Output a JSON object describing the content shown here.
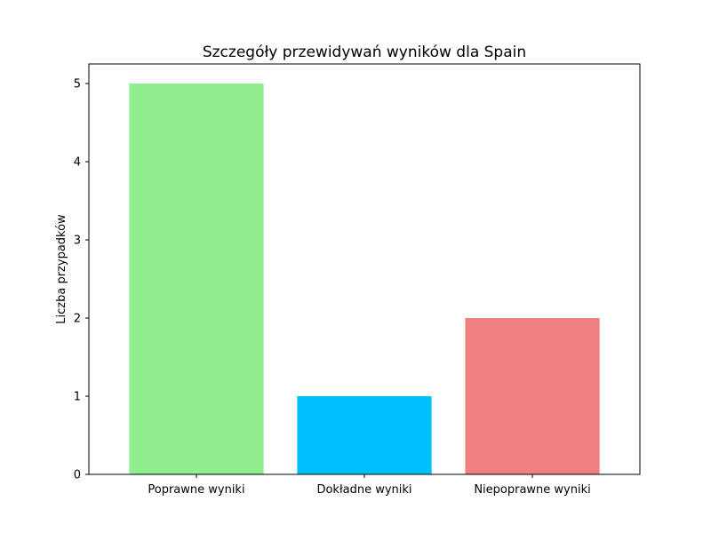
{
  "chart_data": {
    "type": "bar",
    "title": "Szczegóły przewidywań wyników dla Spain",
    "xlabel": "",
    "ylabel": "Liczba przypadków",
    "categories": [
      "Poprawne wyniki",
      "Dokładne wyniki",
      "Niepoprawne wyniki"
    ],
    "values": [
      5,
      1,
      2
    ],
    "colors": [
      "#90ee90",
      "#00bfff",
      "#f08080"
    ],
    "ylim": [
      0,
      5.25
    ],
    "yticks": [
      0,
      1,
      2,
      3,
      4,
      5
    ],
    "grid": false,
    "legend": "none"
  }
}
